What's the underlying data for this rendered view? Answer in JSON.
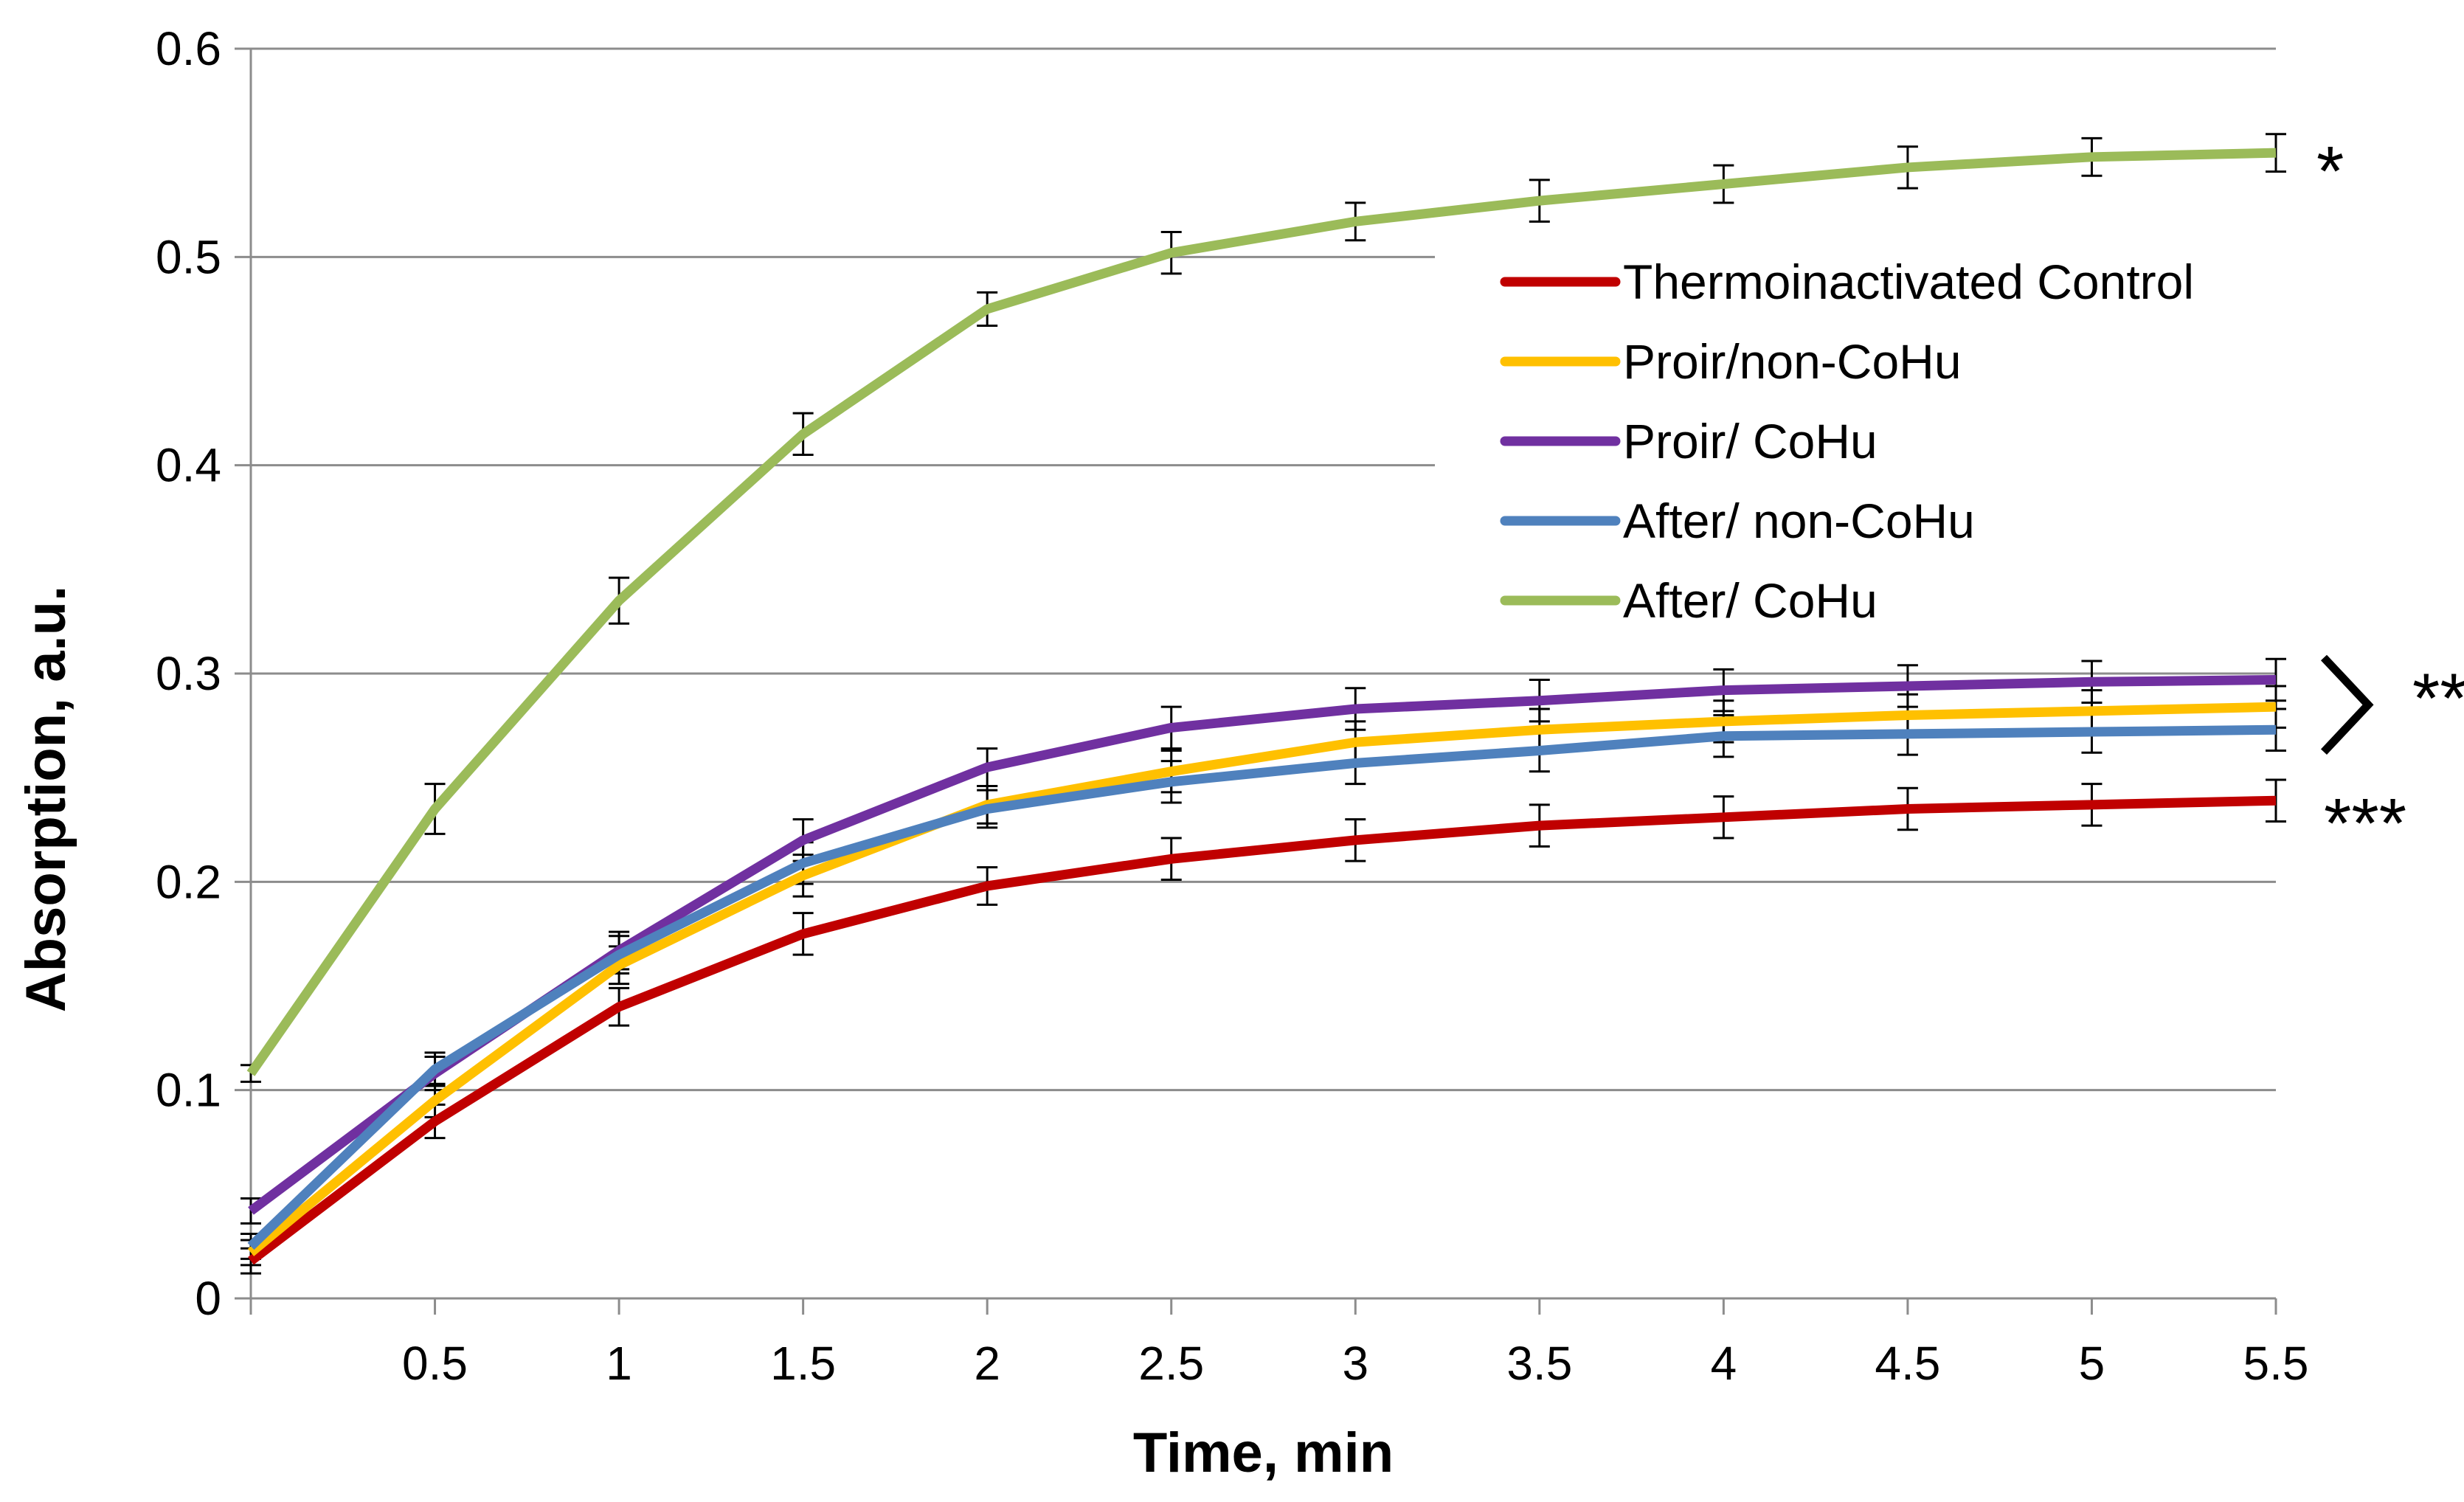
{
  "chart_data": {
    "type": "line",
    "xlabel": "Time, min",
    "ylabel": "Absorption, a.u.",
    "xlim": [
      0,
      5.5
    ],
    "ylim": [
      0,
      0.6
    ],
    "x": [
      0,
      0.5,
      1,
      1.5,
      2,
      2.5,
      3,
      3.5,
      4,
      4.5,
      5,
      5.5
    ],
    "x_ticks": [
      0.5,
      1,
      1.5,
      2,
      2.5,
      3,
      3.5,
      4,
      4.5,
      5,
      5.5
    ],
    "x_tick_labels": [
      "0.5",
      "1",
      "1.5",
      "2",
      "2.5",
      "3",
      "3.5",
      "4",
      "4.5",
      "5",
      "5.5"
    ],
    "y_ticks": [
      0,
      0.1,
      0.2,
      0.3,
      0.4,
      0.5,
      0.6
    ],
    "y_tick_labels": [
      "0",
      "0.1",
      "0.2",
      "0.3",
      "0.4",
      "0.5",
      "0.6"
    ],
    "grid": "horizontal",
    "legend_position": "top-right",
    "series": [
      {
        "name": "Thermoinactivated Control",
        "color": "#c00000",
        "values": [
          0.018,
          0.085,
          0.14,
          0.175,
          0.198,
          0.211,
          0.22,
          0.227,
          0.231,
          0.235,
          0.237,
          0.239
        ],
        "errors": [
          0.006,
          0.008,
          0.009,
          0.01,
          0.009,
          0.01,
          0.01,
          0.01,
          0.01,
          0.01,
          0.01,
          0.01
        ]
      },
      {
        "name": "Proir/non-CoHu",
        "color": "#ffc000",
        "values": [
          0.022,
          0.095,
          0.16,
          0.203,
          0.237,
          0.253,
          0.267,
          0.273,
          0.277,
          0.28,
          0.282,
          0.284
        ],
        "errors": [
          0.006,
          0.008,
          0.009,
          0.01,
          0.009,
          0.01,
          0.01,
          0.01,
          0.01,
          0.01,
          0.01,
          0.01
        ]
      },
      {
        "name": "Proir/ CoHu",
        "color": "#7030a0",
        "values": [
          0.042,
          0.108,
          0.167,
          0.22,
          0.255,
          0.274,
          0.283,
          0.287,
          0.292,
          0.294,
          0.296,
          0.297
        ],
        "errors": [
          0.006,
          0.008,
          0.009,
          0.01,
          0.009,
          0.01,
          0.01,
          0.01,
          0.01,
          0.01,
          0.01,
          0.01
        ]
      },
      {
        "name": "After/ non-CoHu",
        "color": "#4f81bd",
        "values": [
          0.025,
          0.11,
          0.165,
          0.209,
          0.235,
          0.248,
          0.257,
          0.263,
          0.27,
          0.271,
          0.272,
          0.273
        ],
        "errors": [
          0.006,
          0.008,
          0.009,
          0.01,
          0.009,
          0.01,
          0.01,
          0.01,
          0.01,
          0.01,
          0.01,
          0.01
        ]
      },
      {
        "name": "After/ CoHu",
        "color": "#9bbb59",
        "values": [
          0.108,
          0.235,
          0.335,
          0.415,
          0.475,
          0.502,
          0.517,
          0.527,
          0.535,
          0.543,
          0.548,
          0.55
        ],
        "errors": [
          0.004,
          0.012,
          0.011,
          0.01,
          0.008,
          0.01,
          0.009,
          0.01,
          0.009,
          0.01,
          0.009,
          0.009
        ]
      }
    ],
    "annotations": [
      {
        "text": "*",
        "y": 0.55
      },
      {
        "text": "**",
        "y": 0.297
      },
      {
        "text": "***",
        "y": 0.237
      }
    ],
    "bracket": {
      "glyph": ">",
      "y_top": 0.297,
      "y_bottom": 0.273
    }
  }
}
